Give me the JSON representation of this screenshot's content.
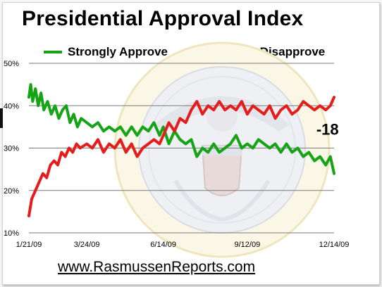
{
  "colors": {
    "approve": "#16a316",
    "disapprove": "#e51c1c",
    "grid": "#7a7a7a"
  },
  "watermark_icon": "presidential-seal",
  "chart_data": {
    "type": "line",
    "title": "Presidential Approval Index",
    "footer": "www.RasmussenReports.com",
    "legend_position": "top",
    "grid": true,
    "ylim": [
      10,
      50
    ],
    "y_ticks": [
      {
        "value": 10,
        "label": "10%"
      },
      {
        "value": 20,
        "label": "20%"
      },
      {
        "value": 30,
        "label": "30%"
      },
      {
        "value": 40,
        "label": "40%"
      },
      {
        "value": 50,
        "label": "50%"
      }
    ],
    "xlim": [
      "2009-01-21",
      "2009-12-14"
    ],
    "x_ticks": [
      {
        "value": "2009-01-21",
        "label": "1/21/09"
      },
      {
        "value": "2009-03-24",
        "label": "3/24/09"
      },
      {
        "value": "2009-06-14",
        "label": "6/14/09"
      },
      {
        "value": "2009-09-12",
        "label": "9/12/09"
      },
      {
        "value": "2009-12-14",
        "label": "12/14/09"
      }
    ],
    "annotation": {
      "text": "-18",
      "x": "2009-11-25",
      "y": 34.5
    },
    "series": [
      {
        "name": "Strongly Approve",
        "color_key": "approve",
        "points": [
          [
            "2009-01-21",
            42
          ],
          [
            "2009-01-23",
            45
          ],
          [
            "2009-01-25",
            41
          ],
          [
            "2009-01-28",
            44
          ],
          [
            "2009-01-31",
            40
          ],
          [
            "2009-02-03",
            43
          ],
          [
            "2009-02-06",
            39
          ],
          [
            "2009-02-10",
            41
          ],
          [
            "2009-02-14",
            38
          ],
          [
            "2009-02-18",
            40
          ],
          [
            "2009-02-22",
            37
          ],
          [
            "2009-02-26",
            39
          ],
          [
            "2009-03-02",
            40
          ],
          [
            "2009-03-06",
            36
          ],
          [
            "2009-03-10",
            38
          ],
          [
            "2009-03-14",
            35
          ],
          [
            "2009-03-18",
            37
          ],
          [
            "2009-03-24",
            36
          ],
          [
            "2009-03-30",
            35
          ],
          [
            "2009-04-05",
            36
          ],
          [
            "2009-04-11",
            34
          ],
          [
            "2009-04-17",
            35
          ],
          [
            "2009-04-23",
            34
          ],
          [
            "2009-04-29",
            35
          ],
          [
            "2009-05-05",
            33
          ],
          [
            "2009-05-11",
            35
          ],
          [
            "2009-05-17",
            33
          ],
          [
            "2009-05-23",
            35
          ],
          [
            "2009-05-29",
            34
          ],
          [
            "2009-06-04",
            36
          ],
          [
            "2009-06-10",
            33
          ],
          [
            "2009-06-14",
            35
          ],
          [
            "2009-06-20",
            31
          ],
          [
            "2009-06-26",
            34
          ],
          [
            "2009-07-02",
            32
          ],
          [
            "2009-07-08",
            31
          ],
          [
            "2009-07-14",
            32
          ],
          [
            "2009-07-20",
            28
          ],
          [
            "2009-07-26",
            30
          ],
          [
            "2009-08-01",
            29
          ],
          [
            "2009-08-07",
            31
          ],
          [
            "2009-08-13",
            29
          ],
          [
            "2009-08-19",
            30
          ],
          [
            "2009-08-25",
            31
          ],
          [
            "2009-08-31",
            33
          ],
          [
            "2009-09-06",
            30
          ],
          [
            "2009-09-12",
            31
          ],
          [
            "2009-09-18",
            30
          ],
          [
            "2009-09-24",
            32
          ],
          [
            "2009-09-30",
            31
          ],
          [
            "2009-10-06",
            30
          ],
          [
            "2009-10-12",
            31
          ],
          [
            "2009-10-18",
            29
          ],
          [
            "2009-10-24",
            31
          ],
          [
            "2009-10-30",
            29
          ],
          [
            "2009-11-05",
            30
          ],
          [
            "2009-11-11",
            28
          ],
          [
            "2009-11-17",
            29
          ],
          [
            "2009-11-23",
            27
          ],
          [
            "2009-11-29",
            28
          ],
          [
            "2009-12-05",
            26
          ],
          [
            "2009-12-10",
            28
          ],
          [
            "2009-12-14",
            24
          ]
        ]
      },
      {
        "name": "Strongly Disapprove",
        "color_key": "disapprove",
        "points": [
          [
            "2009-01-21",
            14
          ],
          [
            "2009-01-24",
            18
          ],
          [
            "2009-01-28",
            20
          ],
          [
            "2009-02-01",
            22
          ],
          [
            "2009-02-05",
            24
          ],
          [
            "2009-02-09",
            23
          ],
          [
            "2009-02-13",
            26
          ],
          [
            "2009-02-17",
            27
          ],
          [
            "2009-02-21",
            26
          ],
          [
            "2009-02-25",
            29
          ],
          [
            "2009-03-01",
            28
          ],
          [
            "2009-03-05",
            30
          ],
          [
            "2009-03-09",
            29
          ],
          [
            "2009-03-13",
            31
          ],
          [
            "2009-03-17",
            30
          ],
          [
            "2009-03-24",
            31
          ],
          [
            "2009-03-30",
            30
          ],
          [
            "2009-04-05",
            32
          ],
          [
            "2009-04-11",
            29
          ],
          [
            "2009-04-17",
            31
          ],
          [
            "2009-04-23",
            30
          ],
          [
            "2009-04-29",
            32
          ],
          [
            "2009-05-05",
            29
          ],
          [
            "2009-05-11",
            31
          ],
          [
            "2009-05-17",
            28
          ],
          [
            "2009-05-23",
            30
          ],
          [
            "2009-05-29",
            31
          ],
          [
            "2009-06-04",
            32
          ],
          [
            "2009-06-10",
            31
          ],
          [
            "2009-06-14",
            33
          ],
          [
            "2009-06-20",
            36
          ],
          [
            "2009-06-26",
            34
          ],
          [
            "2009-07-02",
            37
          ],
          [
            "2009-07-08",
            36
          ],
          [
            "2009-07-14",
            39
          ],
          [
            "2009-07-20",
            41
          ],
          [
            "2009-07-26",
            38
          ],
          [
            "2009-08-01",
            40
          ],
          [
            "2009-08-07",
            39
          ],
          [
            "2009-08-13",
            41
          ],
          [
            "2009-08-19",
            39
          ],
          [
            "2009-08-25",
            40
          ],
          [
            "2009-08-31",
            39
          ],
          [
            "2009-09-06",
            41
          ],
          [
            "2009-09-12",
            38
          ],
          [
            "2009-09-18",
            40
          ],
          [
            "2009-09-24",
            39
          ],
          [
            "2009-09-30",
            38
          ],
          [
            "2009-10-06",
            40
          ],
          [
            "2009-10-12",
            37
          ],
          [
            "2009-10-18",
            39
          ],
          [
            "2009-10-24",
            40
          ],
          [
            "2009-10-30",
            38
          ],
          [
            "2009-11-05",
            39
          ],
          [
            "2009-11-11",
            41
          ],
          [
            "2009-11-17",
            40
          ],
          [
            "2009-11-23",
            39
          ],
          [
            "2009-11-29",
            40
          ],
          [
            "2009-12-05",
            39
          ],
          [
            "2009-12-10",
            40
          ],
          [
            "2009-12-14",
            42
          ]
        ]
      }
    ]
  }
}
